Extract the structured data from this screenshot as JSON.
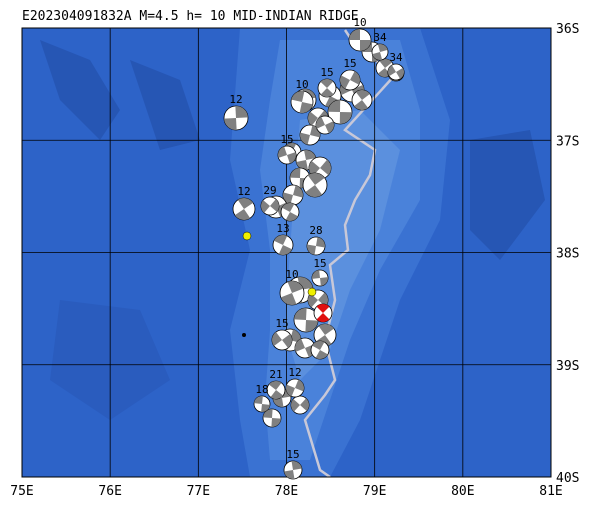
{
  "header": {
    "title": "E202304091832A M=4.5 h= 10 MID-INDIAN RIDGE"
  },
  "axes": {
    "lon_ticks": [
      {
        "value": 75,
        "label": "75E"
      },
      {
        "value": 76,
        "label": "76E"
      },
      {
        "value": 77,
        "label": "77E"
      },
      {
        "value": 78,
        "label": "78E"
      },
      {
        "value": 79,
        "label": "79E"
      },
      {
        "value": 80,
        "label": "80E"
      },
      {
        "value": 81,
        "label": "81E"
      }
    ],
    "lat_ticks": [
      {
        "value": 36,
        "label": "36S"
      },
      {
        "value": 37,
        "label": "37S"
      },
      {
        "value": 38,
        "label": "38S"
      },
      {
        "value": 39,
        "label": "39S"
      },
      {
        "value": 40,
        "label": "40S"
      }
    ]
  },
  "events": [
    "10",
    "34",
    "34",
    "15",
    "15",
    "10",
    "12",
    "15",
    "12",
    "29",
    "13",
    "28",
    "15",
    "10",
    "15",
    "21",
    "12",
    "18",
    "15"
  ]
}
